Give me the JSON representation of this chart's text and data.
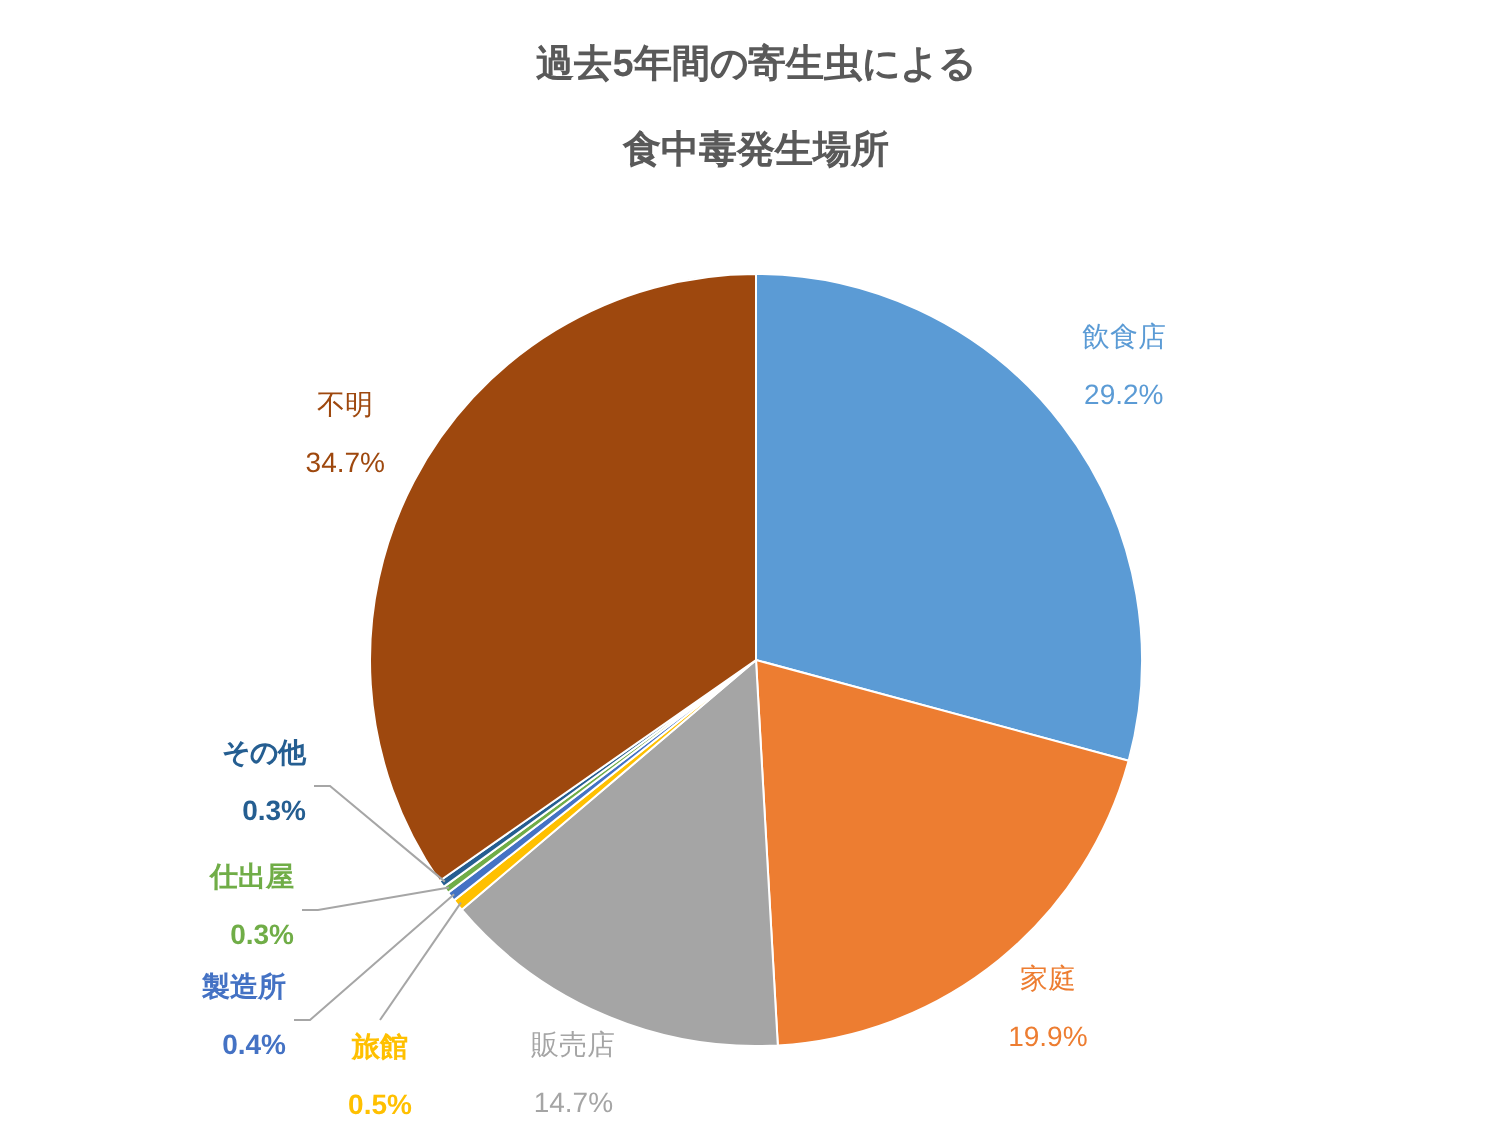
{
  "chart_data": {
    "type": "pie",
    "title": "過去5年間の寄生虫による食中毒発生場所",
    "categories": [
      "飲食店",
      "家庭",
      "販売店",
      "旅館",
      "製造所",
      "仕出屋",
      "その他",
      "不明"
    ],
    "values": [
      29.2,
      19.9,
      14.7,
      0.5,
      0.4,
      0.3,
      0.3,
      34.7
    ],
    "colors": [
      "#5b9bd5",
      "#ed7d31",
      "#a5a5a5",
      "#ffc000",
      "#4472c4",
      "#70ad47",
      "#255e91",
      "#9e480e"
    ],
    "value_labels": [
      "29.2%",
      "19.9%",
      "14.7%",
      "0.5%",
      "0.4%",
      "0.3%",
      "0.3%",
      "34.7%"
    ]
  }
}
